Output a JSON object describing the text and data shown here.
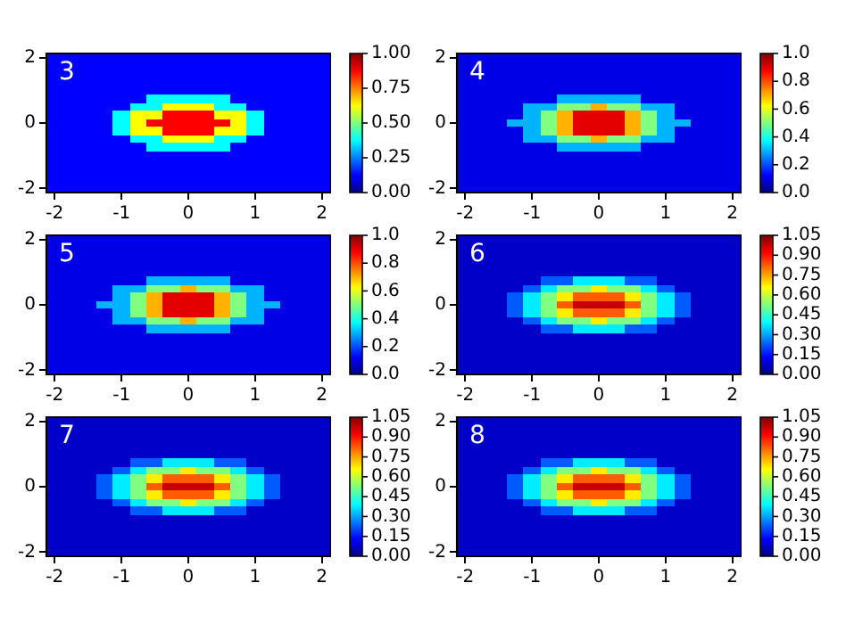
{
  "chart_data": [
    {
      "type": "heatmap",
      "annotations": [
        "3"
      ],
      "clim": [
        0,
        1
      ],
      "cticks": [
        {
          "value": 0,
          "label": "0.00"
        },
        0.25,
        {
          "value": 0.5,
          "label": "0.50"
        },
        0.75,
        {
          "value": 1,
          "label": "1.00"
        }
      ],
      "categories": [
        "-2",
        null,
        null,
        null,
        "-1",
        null,
        null,
        null,
        "0",
        null,
        null,
        null,
        "1",
        null,
        null,
        null,
        "2"
      ],
      "y_categories": [
        "2",
        null,
        null,
        null,
        null,
        null,
        null,
        null,
        "0",
        null,
        null,
        null,
        null,
        null,
        null,
        null,
        "-2"
      ],
      "cells": [
        [
          0.125,
          0.125,
          0.125,
          0.125,
          0.125,
          0.125,
          0.125,
          0.125,
          0.125,
          0.125,
          0.125,
          0.125,
          0.125,
          0.125,
          0.125,
          0.125,
          0.125
        ],
        [
          0.125,
          0.125,
          0.125,
          0.125,
          0.125,
          0.125,
          0.125,
          0.125,
          0.125,
          0.125,
          0.125,
          0.125,
          0.125,
          0.125,
          0.125,
          0.125,
          0.125
        ],
        [
          0.125,
          0.125,
          0.125,
          0.125,
          0.125,
          0.125,
          0.125,
          0.125,
          0.125,
          0.125,
          0.125,
          0.125,
          0.125,
          0.125,
          0.125,
          0.125,
          0.125
        ],
        [
          0.125,
          0.125,
          0.125,
          0.125,
          0.125,
          0.125,
          0.125,
          0.125,
          0.125,
          0.125,
          0.125,
          0.125,
          0.125,
          0.125,
          0.125,
          0.125,
          0.125
        ],
        [
          0.125,
          0.125,
          0.125,
          0.125,
          0.125,
          0.125,
          0.125,
          0.125,
          0.125,
          0.125,
          0.125,
          0.125,
          0.125,
          0.125,
          0.125,
          0.125,
          0.125
        ],
        [
          0.125,
          0.125,
          0.125,
          0.125,
          0.125,
          0.125,
          0.375,
          0.375,
          0.375,
          0.375,
          0.375,
          0.125,
          0.125,
          0.125,
          0.125,
          0.125,
          0.125
        ],
        [
          0.125,
          0.125,
          0.125,
          0.125,
          0.125,
          0.375,
          0.375,
          0.625,
          0.625,
          0.625,
          0.375,
          0.375,
          0.125,
          0.125,
          0.125,
          0.125,
          0.125
        ],
        [
          0.125,
          0.125,
          0.125,
          0.125,
          0.375,
          0.625,
          0.625,
          0.875,
          0.875,
          0.875,
          0.625,
          0.625,
          0.375,
          0.125,
          0.125,
          0.125,
          0.125
        ],
        [
          0.125,
          0.125,
          0.125,
          0.125,
          0.375,
          0.625,
          0.875,
          0.875,
          0.875,
          0.875,
          0.875,
          0.625,
          0.375,
          0.125,
          0.125,
          0.125,
          0.125
        ],
        [
          0.125,
          0.125,
          0.125,
          0.125,
          0.375,
          0.625,
          0.625,
          0.875,
          0.875,
          0.875,
          0.625,
          0.625,
          0.375,
          0.125,
          0.125,
          0.125,
          0.125
        ],
        [
          0.125,
          0.125,
          0.125,
          0.125,
          0.125,
          0.375,
          0.375,
          0.625,
          0.625,
          0.625,
          0.375,
          0.375,
          0.125,
          0.125,
          0.125,
          0.125,
          0.125
        ],
        [
          0.125,
          0.125,
          0.125,
          0.125,
          0.125,
          0.125,
          0.375,
          0.375,
          0.375,
          0.375,
          0.375,
          0.125,
          0.125,
          0.125,
          0.125,
          0.125,
          0.125
        ],
        [
          0.125,
          0.125,
          0.125,
          0.125,
          0.125,
          0.125,
          0.125,
          0.125,
          0.125,
          0.125,
          0.125,
          0.125,
          0.125,
          0.125,
          0.125,
          0.125,
          0.125
        ],
        [
          0.125,
          0.125,
          0.125,
          0.125,
          0.125,
          0.125,
          0.125,
          0.125,
          0.125,
          0.125,
          0.125,
          0.125,
          0.125,
          0.125,
          0.125,
          0.125,
          0.125
        ],
        [
          0.125,
          0.125,
          0.125,
          0.125,
          0.125,
          0.125,
          0.125,
          0.125,
          0.125,
          0.125,
          0.125,
          0.125,
          0.125,
          0.125,
          0.125,
          0.125,
          0.125
        ],
        [
          0.125,
          0.125,
          0.125,
          0.125,
          0.125,
          0.125,
          0.125,
          0.125,
          0.125,
          0.125,
          0.125,
          0.125,
          0.125,
          0.125,
          0.125,
          0.125,
          0.125
        ],
        [
          0.125,
          0.125,
          0.125,
          0.125,
          0.125,
          0.125,
          0.125,
          0.125,
          0.125,
          0.125,
          0.125,
          0.125,
          0.125,
          0.125,
          0.125,
          0.125,
          0.125
        ]
      ]
    },
    {
      "type": "heatmap",
      "annotations": [
        "4"
      ],
      "clim": [
        0,
        1
      ],
      "cticks": [
        {
          "value": 0,
          "label": "0.0"
        },
        0.2,
        0.4,
        0.6,
        0.8,
        {
          "value": 1,
          "label": "1.0"
        }
      ],
      "categories": [
        "-2",
        null,
        null,
        null,
        "-1",
        null,
        null,
        null,
        "0",
        null,
        null,
        null,
        "1",
        null,
        null,
        null,
        "2"
      ],
      "y_categories": [
        "2",
        null,
        null,
        null,
        null,
        null,
        null,
        null,
        "0",
        null,
        null,
        null,
        null,
        null,
        null,
        null,
        "-2"
      ],
      "cells": [
        [
          0.1,
          0.1,
          0.1,
          0.1,
          0.1,
          0.1,
          0.1,
          0.1,
          0.1,
          0.1,
          0.1,
          0.1,
          0.1,
          0.1,
          0.1,
          0.1,
          0.1
        ],
        [
          0.1,
          0.1,
          0.1,
          0.1,
          0.1,
          0.1,
          0.1,
          0.1,
          0.1,
          0.1,
          0.1,
          0.1,
          0.1,
          0.1,
          0.1,
          0.1,
          0.1
        ],
        [
          0.1,
          0.1,
          0.1,
          0.1,
          0.1,
          0.1,
          0.1,
          0.1,
          0.1,
          0.1,
          0.1,
          0.1,
          0.1,
          0.1,
          0.1,
          0.1,
          0.1
        ],
        [
          0.1,
          0.1,
          0.1,
          0.1,
          0.1,
          0.1,
          0.1,
          0.1,
          0.1,
          0.1,
          0.1,
          0.1,
          0.1,
          0.1,
          0.1,
          0.1,
          0.1
        ],
        [
          0.1,
          0.1,
          0.1,
          0.1,
          0.1,
          0.1,
          0.1,
          0.1,
          0.1,
          0.1,
          0.1,
          0.1,
          0.1,
          0.1,
          0.1,
          0.1,
          0.1
        ],
        [
          0.1,
          0.1,
          0.1,
          0.1,
          0.1,
          0.1,
          0.3,
          0.3,
          0.3,
          0.3,
          0.3,
          0.1,
          0.1,
          0.1,
          0.1,
          0.1,
          0.1
        ],
        [
          0.1,
          0.1,
          0.1,
          0.1,
          0.3,
          0.3,
          0.5,
          0.5,
          0.7,
          0.5,
          0.5,
          0.3,
          0.3,
          0.1,
          0.1,
          0.1,
          0.1
        ],
        [
          0.1,
          0.1,
          0.1,
          0.1,
          0.3,
          0.5,
          0.7,
          0.9,
          0.9,
          0.9,
          0.7,
          0.5,
          0.3,
          0.1,
          0.1,
          0.1,
          0.1
        ],
        [
          0.1,
          0.1,
          0.1,
          0.3,
          0.3,
          0.5,
          0.7,
          0.9,
          0.9,
          0.9,
          0.7,
          0.5,
          0.3,
          0.3,
          0.1,
          0.1,
          0.1
        ],
        [
          0.1,
          0.1,
          0.1,
          0.1,
          0.3,
          0.5,
          0.7,
          0.9,
          0.9,
          0.9,
          0.7,
          0.5,
          0.3,
          0.1,
          0.1,
          0.1,
          0.1
        ],
        [
          0.1,
          0.1,
          0.1,
          0.1,
          0.3,
          0.3,
          0.5,
          0.5,
          0.7,
          0.5,
          0.5,
          0.3,
          0.3,
          0.1,
          0.1,
          0.1,
          0.1
        ],
        [
          0.1,
          0.1,
          0.1,
          0.1,
          0.1,
          0.1,
          0.3,
          0.3,
          0.3,
          0.3,
          0.3,
          0.1,
          0.1,
          0.1,
          0.1,
          0.1,
          0.1
        ],
        [
          0.1,
          0.1,
          0.1,
          0.1,
          0.1,
          0.1,
          0.1,
          0.1,
          0.1,
          0.1,
          0.1,
          0.1,
          0.1,
          0.1,
          0.1,
          0.1,
          0.1
        ],
        [
          0.1,
          0.1,
          0.1,
          0.1,
          0.1,
          0.1,
          0.1,
          0.1,
          0.1,
          0.1,
          0.1,
          0.1,
          0.1,
          0.1,
          0.1,
          0.1,
          0.1
        ],
        [
          0.1,
          0.1,
          0.1,
          0.1,
          0.1,
          0.1,
          0.1,
          0.1,
          0.1,
          0.1,
          0.1,
          0.1,
          0.1,
          0.1,
          0.1,
          0.1,
          0.1
        ],
        [
          0.1,
          0.1,
          0.1,
          0.1,
          0.1,
          0.1,
          0.1,
          0.1,
          0.1,
          0.1,
          0.1,
          0.1,
          0.1,
          0.1,
          0.1,
          0.1,
          0.1
        ],
        [
          0.1,
          0.1,
          0.1,
          0.1,
          0.1,
          0.1,
          0.1,
          0.1,
          0.1,
          0.1,
          0.1,
          0.1,
          0.1,
          0.1,
          0.1,
          0.1,
          0.1
        ]
      ]
    },
    {
      "type": "heatmap",
      "annotations": [
        "5"
      ],
      "clim": [
        0,
        1
      ],
      "cticks": [
        {
          "value": 0,
          "label": "0.0"
        },
        0.2,
        0.4,
        0.6,
        0.8,
        {
          "value": 1,
          "label": "1.0"
        }
      ],
      "categories": [
        "-2",
        null,
        null,
        null,
        "-1",
        null,
        null,
        null,
        "0",
        null,
        null,
        null,
        "1",
        null,
        null,
        null,
        "2"
      ],
      "y_categories": [
        "2",
        null,
        null,
        null,
        null,
        null,
        null,
        null,
        "0",
        null,
        null,
        null,
        null,
        null,
        null,
        null,
        "-2"
      ],
      "cells": [
        [
          0.1,
          0.1,
          0.1,
          0.1,
          0.1,
          0.1,
          0.1,
          0.1,
          0.1,
          0.1,
          0.1,
          0.1,
          0.1,
          0.1,
          0.1,
          0.1,
          0.1
        ],
        [
          0.1,
          0.1,
          0.1,
          0.1,
          0.1,
          0.1,
          0.1,
          0.1,
          0.1,
          0.1,
          0.1,
          0.1,
          0.1,
          0.1,
          0.1,
          0.1,
          0.1
        ],
        [
          0.1,
          0.1,
          0.1,
          0.1,
          0.1,
          0.1,
          0.1,
          0.1,
          0.1,
          0.1,
          0.1,
          0.1,
          0.1,
          0.1,
          0.1,
          0.1,
          0.1
        ],
        [
          0.1,
          0.1,
          0.1,
          0.1,
          0.1,
          0.1,
          0.1,
          0.1,
          0.1,
          0.1,
          0.1,
          0.1,
          0.1,
          0.1,
          0.1,
          0.1,
          0.1
        ],
        [
          0.1,
          0.1,
          0.1,
          0.1,
          0.1,
          0.1,
          0.1,
          0.1,
          0.1,
          0.1,
          0.1,
          0.1,
          0.1,
          0.1,
          0.1,
          0.1,
          0.1
        ],
        [
          0.1,
          0.1,
          0.1,
          0.1,
          0.1,
          0.1,
          0.3,
          0.3,
          0.3,
          0.3,
          0.3,
          0.1,
          0.1,
          0.1,
          0.1,
          0.1,
          0.1
        ],
        [
          0.1,
          0.1,
          0.1,
          0.1,
          0.3,
          0.3,
          0.5,
          0.5,
          0.7,
          0.5,
          0.5,
          0.3,
          0.3,
          0.1,
          0.1,
          0.1,
          0.1
        ],
        [
          0.1,
          0.1,
          0.1,
          0.1,
          0.3,
          0.5,
          0.7,
          0.9,
          0.9,
          0.9,
          0.7,
          0.5,
          0.3,
          0.1,
          0.1,
          0.1,
          0.1
        ],
        [
          0.1,
          0.1,
          0.1,
          0.3,
          0.3,
          0.5,
          0.7,
          0.9,
          0.9,
          0.9,
          0.7,
          0.5,
          0.3,
          0.3,
          0.1,
          0.1,
          0.1
        ],
        [
          0.1,
          0.1,
          0.1,
          0.1,
          0.3,
          0.5,
          0.7,
          0.9,
          0.9,
          0.9,
          0.7,
          0.5,
          0.3,
          0.1,
          0.1,
          0.1,
          0.1
        ],
        [
          0.1,
          0.1,
          0.1,
          0.1,
          0.3,
          0.3,
          0.5,
          0.5,
          0.7,
          0.5,
          0.5,
          0.3,
          0.3,
          0.1,
          0.1,
          0.1,
          0.1
        ],
        [
          0.1,
          0.1,
          0.1,
          0.1,
          0.1,
          0.1,
          0.3,
          0.3,
          0.3,
          0.3,
          0.3,
          0.1,
          0.1,
          0.1,
          0.1,
          0.1,
          0.1
        ],
        [
          0.1,
          0.1,
          0.1,
          0.1,
          0.1,
          0.1,
          0.1,
          0.1,
          0.1,
          0.1,
          0.1,
          0.1,
          0.1,
          0.1,
          0.1,
          0.1,
          0.1
        ],
        [
          0.1,
          0.1,
          0.1,
          0.1,
          0.1,
          0.1,
          0.1,
          0.1,
          0.1,
          0.1,
          0.1,
          0.1,
          0.1,
          0.1,
          0.1,
          0.1,
          0.1
        ],
        [
          0.1,
          0.1,
          0.1,
          0.1,
          0.1,
          0.1,
          0.1,
          0.1,
          0.1,
          0.1,
          0.1,
          0.1,
          0.1,
          0.1,
          0.1,
          0.1,
          0.1
        ],
        [
          0.1,
          0.1,
          0.1,
          0.1,
          0.1,
          0.1,
          0.1,
          0.1,
          0.1,
          0.1,
          0.1,
          0.1,
          0.1,
          0.1,
          0.1,
          0.1,
          0.1
        ],
        [
          0.1,
          0.1,
          0.1,
          0.1,
          0.1,
          0.1,
          0.1,
          0.1,
          0.1,
          0.1,
          0.1,
          0.1,
          0.1,
          0.1,
          0.1,
          0.1,
          0.1
        ]
      ]
    },
    {
      "type": "heatmap",
      "annotations": [
        "6"
      ],
      "clim": [
        0,
        1.05
      ],
      "cticks": [
        {
          "value": 0,
          "label": "0.00"
        },
        0.15,
        {
          "value": 0.3,
          "label": "0.30"
        },
        0.45,
        {
          "value": 0.6,
          "label": "0.60"
        },
        0.75,
        {
          "value": 0.9,
          "label": "0.90"
        },
        1.05
      ],
      "categories": [
        "-2",
        null,
        null,
        null,
        "-1",
        null,
        null,
        null,
        "0",
        null,
        null,
        null,
        "1",
        null,
        null,
        null,
        "2"
      ],
      "y_categories": [
        "2",
        null,
        null,
        null,
        null,
        null,
        null,
        null,
        "0",
        null,
        null,
        null,
        null,
        null,
        null,
        null,
        "-2"
      ],
      "cells": [
        [
          0.075,
          0.075,
          0.075,
          0.075,
          0.075,
          0.075,
          0.075,
          0.075,
          0.075,
          0.075,
          0.075,
          0.075,
          0.075,
          0.075,
          0.075,
          0.075,
          0.075
        ],
        [
          0.075,
          0.075,
          0.075,
          0.075,
          0.075,
          0.075,
          0.075,
          0.075,
          0.075,
          0.075,
          0.075,
          0.075,
          0.075,
          0.075,
          0.075,
          0.075,
          0.075
        ],
        [
          0.075,
          0.075,
          0.075,
          0.075,
          0.075,
          0.075,
          0.075,
          0.075,
          0.075,
          0.075,
          0.075,
          0.075,
          0.075,
          0.075,
          0.075,
          0.075,
          0.075
        ],
        [
          0.075,
          0.075,
          0.075,
          0.075,
          0.075,
          0.075,
          0.075,
          0.075,
          0.075,
          0.075,
          0.075,
          0.075,
          0.075,
          0.075,
          0.075,
          0.075,
          0.075
        ],
        [
          0.075,
          0.075,
          0.075,
          0.075,
          0.075,
          0.075,
          0.075,
          0.075,
          0.075,
          0.075,
          0.075,
          0.075,
          0.075,
          0.075,
          0.075,
          0.075,
          0.075
        ],
        [
          0.075,
          0.075,
          0.075,
          0.075,
          0.075,
          0.225,
          0.225,
          0.375,
          0.375,
          0.375,
          0.225,
          0.225,
          0.075,
          0.075,
          0.075,
          0.075,
          0.075
        ],
        [
          0.075,
          0.075,
          0.075,
          0.075,
          0.225,
          0.375,
          0.525,
          0.525,
          0.675,
          0.525,
          0.525,
          0.375,
          0.225,
          0.075,
          0.075,
          0.075,
          0.075
        ],
        [
          0.075,
          0.075,
          0.075,
          0.225,
          0.375,
          0.525,
          0.675,
          0.825,
          0.825,
          0.825,
          0.675,
          0.525,
          0.375,
          0.225,
          0.075,
          0.075,
          0.075
        ],
        [
          0.075,
          0.075,
          0.075,
          0.225,
          0.375,
          0.525,
          0.825,
          0.975,
          0.975,
          0.975,
          0.825,
          0.525,
          0.375,
          0.225,
          0.075,
          0.075,
          0.075
        ],
        [
          0.075,
          0.075,
          0.075,
          0.225,
          0.375,
          0.525,
          0.675,
          0.825,
          0.825,
          0.825,
          0.675,
          0.525,
          0.375,
          0.225,
          0.075,
          0.075,
          0.075
        ],
        [
          0.075,
          0.075,
          0.075,
          0.075,
          0.225,
          0.375,
          0.525,
          0.525,
          0.675,
          0.525,
          0.525,
          0.375,
          0.225,
          0.075,
          0.075,
          0.075,
          0.075
        ],
        [
          0.075,
          0.075,
          0.075,
          0.075,
          0.075,
          0.225,
          0.225,
          0.375,
          0.375,
          0.375,
          0.225,
          0.225,
          0.075,
          0.075,
          0.075,
          0.075,
          0.075
        ],
        [
          0.075,
          0.075,
          0.075,
          0.075,
          0.075,
          0.075,
          0.075,
          0.075,
          0.075,
          0.075,
          0.075,
          0.075,
          0.075,
          0.075,
          0.075,
          0.075,
          0.075
        ],
        [
          0.075,
          0.075,
          0.075,
          0.075,
          0.075,
          0.075,
          0.075,
          0.075,
          0.075,
          0.075,
          0.075,
          0.075,
          0.075,
          0.075,
          0.075,
          0.075,
          0.075
        ],
        [
          0.075,
          0.075,
          0.075,
          0.075,
          0.075,
          0.075,
          0.075,
          0.075,
          0.075,
          0.075,
          0.075,
          0.075,
          0.075,
          0.075,
          0.075,
          0.075,
          0.075
        ],
        [
          0.075,
          0.075,
          0.075,
          0.075,
          0.075,
          0.075,
          0.075,
          0.075,
          0.075,
          0.075,
          0.075,
          0.075,
          0.075,
          0.075,
          0.075,
          0.075,
          0.075
        ],
        [
          0.075,
          0.075,
          0.075,
          0.075,
          0.075,
          0.075,
          0.075,
          0.075,
          0.075,
          0.075,
          0.075,
          0.075,
          0.075,
          0.075,
          0.075,
          0.075,
          0.075
        ]
      ]
    },
    {
      "type": "heatmap",
      "annotations": [
        "7"
      ],
      "clim": [
        0,
        1.05
      ],
      "cticks": [
        {
          "value": 0,
          "label": "0.00"
        },
        0.15,
        {
          "value": 0.3,
          "label": "0.30"
        },
        0.45,
        {
          "value": 0.6,
          "label": "0.60"
        },
        0.75,
        {
          "value": 0.9,
          "label": "0.90"
        },
        1.05
      ],
      "categories": [
        "-2",
        null,
        null,
        null,
        "-1",
        null,
        null,
        null,
        "0",
        null,
        null,
        null,
        "1",
        null,
        null,
        null,
        "2"
      ],
      "y_categories": [
        "2",
        null,
        null,
        null,
        null,
        null,
        null,
        null,
        "0",
        null,
        null,
        null,
        null,
        null,
        null,
        null,
        "-2"
      ],
      "cells": [
        [
          0.075,
          0.075,
          0.075,
          0.075,
          0.075,
          0.075,
          0.075,
          0.075,
          0.075,
          0.075,
          0.075,
          0.075,
          0.075,
          0.075,
          0.075,
          0.075,
          0.075
        ],
        [
          0.075,
          0.075,
          0.075,
          0.075,
          0.075,
          0.075,
          0.075,
          0.075,
          0.075,
          0.075,
          0.075,
          0.075,
          0.075,
          0.075,
          0.075,
          0.075,
          0.075
        ],
        [
          0.075,
          0.075,
          0.075,
          0.075,
          0.075,
          0.075,
          0.075,
          0.075,
          0.075,
          0.075,
          0.075,
          0.075,
          0.075,
          0.075,
          0.075,
          0.075,
          0.075
        ],
        [
          0.075,
          0.075,
          0.075,
          0.075,
          0.075,
          0.075,
          0.075,
          0.075,
          0.075,
          0.075,
          0.075,
          0.075,
          0.075,
          0.075,
          0.075,
          0.075,
          0.075
        ],
        [
          0.075,
          0.075,
          0.075,
          0.075,
          0.075,
          0.075,
          0.075,
          0.075,
          0.075,
          0.075,
          0.075,
          0.075,
          0.075,
          0.075,
          0.075,
          0.075,
          0.075
        ],
        [
          0.075,
          0.075,
          0.075,
          0.075,
          0.075,
          0.225,
          0.225,
          0.375,
          0.375,
          0.375,
          0.225,
          0.225,
          0.075,
          0.075,
          0.075,
          0.075,
          0.075
        ],
        [
          0.075,
          0.075,
          0.075,
          0.075,
          0.225,
          0.375,
          0.525,
          0.525,
          0.675,
          0.525,
          0.525,
          0.375,
          0.225,
          0.075,
          0.075,
          0.075,
          0.075
        ],
        [
          0.075,
          0.075,
          0.075,
          0.225,
          0.375,
          0.525,
          0.675,
          0.825,
          0.825,
          0.825,
          0.675,
          0.525,
          0.375,
          0.225,
          0.075,
          0.075,
          0.075
        ],
        [
          0.075,
          0.075,
          0.075,
          0.225,
          0.375,
          0.525,
          0.825,
          0.975,
          0.975,
          0.975,
          0.825,
          0.525,
          0.375,
          0.225,
          0.075,
          0.075,
          0.075
        ],
        [
          0.075,
          0.075,
          0.075,
          0.225,
          0.375,
          0.525,
          0.675,
          0.825,
          0.825,
          0.825,
          0.675,
          0.525,
          0.375,
          0.225,
          0.075,
          0.075,
          0.075
        ],
        [
          0.075,
          0.075,
          0.075,
          0.075,
          0.225,
          0.375,
          0.525,
          0.525,
          0.675,
          0.525,
          0.525,
          0.375,
          0.225,
          0.075,
          0.075,
          0.075,
          0.075
        ],
        [
          0.075,
          0.075,
          0.075,
          0.075,
          0.075,
          0.225,
          0.225,
          0.375,
          0.375,
          0.375,
          0.225,
          0.225,
          0.075,
          0.075,
          0.075,
          0.075,
          0.075
        ],
        [
          0.075,
          0.075,
          0.075,
          0.075,
          0.075,
          0.075,
          0.075,
          0.075,
          0.075,
          0.075,
          0.075,
          0.075,
          0.075,
          0.075,
          0.075,
          0.075,
          0.075
        ],
        [
          0.075,
          0.075,
          0.075,
          0.075,
          0.075,
          0.075,
          0.075,
          0.075,
          0.075,
          0.075,
          0.075,
          0.075,
          0.075,
          0.075,
          0.075,
          0.075,
          0.075
        ],
        [
          0.075,
          0.075,
          0.075,
          0.075,
          0.075,
          0.075,
          0.075,
          0.075,
          0.075,
          0.075,
          0.075,
          0.075,
          0.075,
          0.075,
          0.075,
          0.075,
          0.075
        ],
        [
          0.075,
          0.075,
          0.075,
          0.075,
          0.075,
          0.075,
          0.075,
          0.075,
          0.075,
          0.075,
          0.075,
          0.075,
          0.075,
          0.075,
          0.075,
          0.075,
          0.075
        ],
        [
          0.075,
          0.075,
          0.075,
          0.075,
          0.075,
          0.075,
          0.075,
          0.075,
          0.075,
          0.075,
          0.075,
          0.075,
          0.075,
          0.075,
          0.075,
          0.075,
          0.075
        ]
      ]
    },
    {
      "type": "heatmap",
      "annotations": [
        "8"
      ],
      "clim": [
        0,
        1.05
      ],
      "cticks": [
        {
          "value": 0,
          "label": "0.00"
        },
        0.15,
        {
          "value": 0.3,
          "label": "0.30"
        },
        0.45,
        {
          "value": 0.6,
          "label": "0.60"
        },
        0.75,
        {
          "value": 0.9,
          "label": "0.90"
        },
        1.05
      ],
      "categories": [
        "-2",
        null,
        null,
        null,
        "-1",
        null,
        null,
        null,
        "0",
        null,
        null,
        null,
        "1",
        null,
        null,
        null,
        "2"
      ],
      "y_categories": [
        "2",
        null,
        null,
        null,
        null,
        null,
        null,
        null,
        "0",
        null,
        null,
        null,
        null,
        null,
        null,
        null,
        "-2"
      ],
      "cells": [
        [
          0.075,
          0.075,
          0.075,
          0.075,
          0.075,
          0.075,
          0.075,
          0.075,
          0.075,
          0.075,
          0.075,
          0.075,
          0.075,
          0.075,
          0.075,
          0.075,
          0.075
        ],
        [
          0.075,
          0.075,
          0.075,
          0.075,
          0.075,
          0.075,
          0.075,
          0.075,
          0.075,
          0.075,
          0.075,
          0.075,
          0.075,
          0.075,
          0.075,
          0.075,
          0.075
        ],
        [
          0.075,
          0.075,
          0.075,
          0.075,
          0.075,
          0.075,
          0.075,
          0.075,
          0.075,
          0.075,
          0.075,
          0.075,
          0.075,
          0.075,
          0.075,
          0.075,
          0.075
        ],
        [
          0.075,
          0.075,
          0.075,
          0.075,
          0.075,
          0.075,
          0.075,
          0.075,
          0.075,
          0.075,
          0.075,
          0.075,
          0.075,
          0.075,
          0.075,
          0.075,
          0.075
        ],
        [
          0.075,
          0.075,
          0.075,
          0.075,
          0.075,
          0.075,
          0.075,
          0.075,
          0.075,
          0.075,
          0.075,
          0.075,
          0.075,
          0.075,
          0.075,
          0.075,
          0.075
        ],
        [
          0.075,
          0.075,
          0.075,
          0.075,
          0.075,
          0.225,
          0.225,
          0.375,
          0.375,
          0.375,
          0.225,
          0.225,
          0.075,
          0.075,
          0.075,
          0.075,
          0.075
        ],
        [
          0.075,
          0.075,
          0.075,
          0.075,
          0.225,
          0.375,
          0.525,
          0.525,
          0.675,
          0.525,
          0.525,
          0.375,
          0.225,
          0.075,
          0.075,
          0.075,
          0.075
        ],
        [
          0.075,
          0.075,
          0.075,
          0.225,
          0.375,
          0.525,
          0.675,
          0.825,
          0.825,
          0.825,
          0.675,
          0.525,
          0.375,
          0.225,
          0.075,
          0.075,
          0.075
        ],
        [
          0.075,
          0.075,
          0.075,
          0.225,
          0.375,
          0.525,
          0.825,
          0.975,
          0.975,
          0.975,
          0.825,
          0.525,
          0.375,
          0.225,
          0.075,
          0.075,
          0.075
        ],
        [
          0.075,
          0.075,
          0.075,
          0.225,
          0.375,
          0.525,
          0.675,
          0.825,
          0.825,
          0.825,
          0.675,
          0.525,
          0.375,
          0.225,
          0.075,
          0.075,
          0.075
        ],
        [
          0.075,
          0.075,
          0.075,
          0.075,
          0.225,
          0.375,
          0.525,
          0.525,
          0.675,
          0.525,
          0.525,
          0.375,
          0.225,
          0.075,
          0.075,
          0.075,
          0.075
        ],
        [
          0.075,
          0.075,
          0.075,
          0.075,
          0.075,
          0.225,
          0.225,
          0.375,
          0.375,
          0.375,
          0.225,
          0.225,
          0.075,
          0.075,
          0.075,
          0.075,
          0.075
        ],
        [
          0.075,
          0.075,
          0.075,
          0.075,
          0.075,
          0.075,
          0.075,
          0.075,
          0.075,
          0.075,
          0.075,
          0.075,
          0.075,
          0.075,
          0.075,
          0.075,
          0.075
        ],
        [
          0.075,
          0.075,
          0.075,
          0.075,
          0.075,
          0.075,
          0.075,
          0.075,
          0.075,
          0.075,
          0.075,
          0.075,
          0.075,
          0.075,
          0.075,
          0.075,
          0.075
        ],
        [
          0.075,
          0.075,
          0.075,
          0.075,
          0.075,
          0.075,
          0.075,
          0.075,
          0.075,
          0.075,
          0.075,
          0.075,
          0.075,
          0.075,
          0.075,
          0.075,
          0.075
        ],
        [
          0.075,
          0.075,
          0.075,
          0.075,
          0.075,
          0.075,
          0.075,
          0.075,
          0.075,
          0.075,
          0.075,
          0.075,
          0.075,
          0.075,
          0.075,
          0.075,
          0.075
        ],
        [
          0.075,
          0.075,
          0.075,
          0.075,
          0.075,
          0.075,
          0.075,
          0.075,
          0.075,
          0.075,
          0.075,
          0.075,
          0.075,
          0.075,
          0.075,
          0.075,
          0.075
        ]
      ]
    }
  ]
}
